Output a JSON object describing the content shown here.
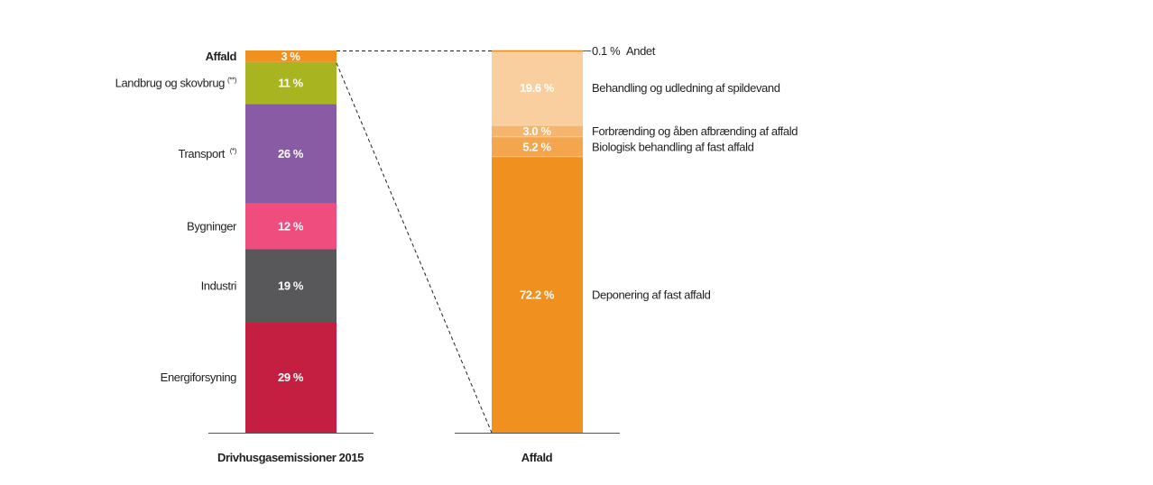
{
  "chart_data": [
    {
      "type": "bar",
      "stacked": true,
      "xlabel": "Drivhusgasemissioner 2015",
      "unit": "%",
      "categories": [
        "Energiforsyning",
        "Industri",
        "Bygninger",
        "Transport",
        "Landbrug og skovbrug",
        "Affald"
      ],
      "superscripts": [
        "",
        "",
        "",
        "(*)",
        "(**)",
        ""
      ],
      "values": [
        29,
        19,
        12,
        26,
        11,
        3
      ],
      "value_labels": [
        "29 %",
        "19 %",
        "12 %",
        "26 %",
        "11 %",
        "3 %"
      ],
      "colors": [
        "#c41f41",
        "#58585a",
        "#ee4d7d",
        "#8a5ba5",
        "#a9b520",
        "#f0911f"
      ],
      "bold_category": "Affald"
    },
    {
      "type": "bar",
      "stacked": true,
      "xlabel": "Affald",
      "unit": "%",
      "categories": [
        "Deponering af fast affald",
        "Biologisk behandling af fast affald",
        "Forbrænding og åben afbrænding af affald",
        "Behandling og udledning af spildevand",
        "Andet"
      ],
      "values": [
        72.2,
        5.2,
        3.0,
        19.6,
        0.1
      ],
      "value_labels": [
        "72.2 %",
        "5.2 %",
        "3.0 %",
        "19.6 %",
        "0.1 %"
      ],
      "colors": [
        "#f0911f",
        "#f3a64d",
        "#f5b56f",
        "#f9cfa0",
        "#e8891a"
      ]
    }
  ]
}
